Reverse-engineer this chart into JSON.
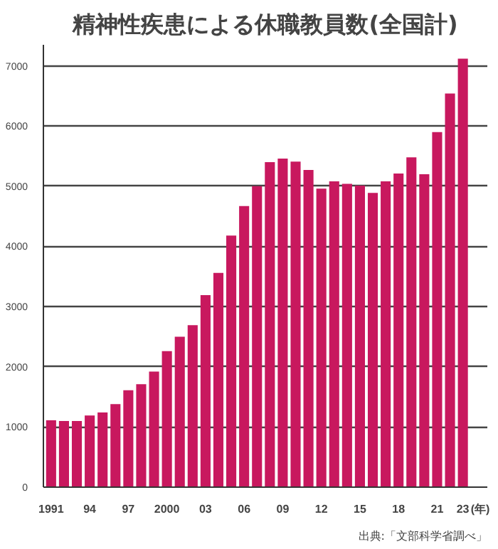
{
  "chart_data": {
    "type": "bar",
    "title": "精神性疾患による休職教員数(全国計)",
    "categories": [
      "1991",
      null,
      null,
      "94",
      null,
      null,
      "97",
      null,
      null,
      "2000",
      null,
      null,
      "03",
      null,
      null,
      "06",
      null,
      null,
      "09",
      null,
      null,
      "12",
      null,
      null,
      "15",
      null,
      null,
      "18",
      null,
      null,
      "21",
      null,
      "23"
    ],
    "values": [
      1110,
      1100,
      1100,
      1190,
      1240,
      1380,
      1610,
      1710,
      1920,
      2260,
      2500,
      2690,
      3190,
      3560,
      4180,
      4670,
      5000,
      5400,
      5460,
      5410,
      5270,
      4960,
      5080,
      5040,
      5010,
      4890,
      5080,
      5210,
      5480,
      5200,
      5900,
      6540,
      7120
    ],
    "color": "#c8185e",
    "xlabel": "(年)",
    "ylim": [
      0,
      7350
    ],
    "yticks": [
      0,
      1000,
      2000,
      3000,
      4000,
      5000,
      6000,
      7000
    ],
    "grid": "y",
    "annotations": [
      "出典:「文部科学省調べ」"
    ]
  }
}
